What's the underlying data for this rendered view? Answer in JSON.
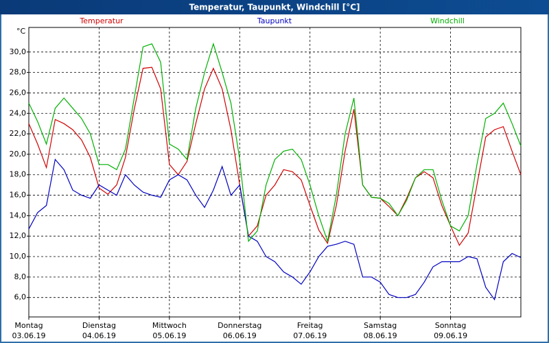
{
  "chart_data": {
    "type": "line",
    "title": "Temperatur, Taupunkt, Windchill [°C]",
    "y_unit": "°C",
    "x": [
      0,
      3,
      6,
      9,
      12,
      15,
      18,
      21,
      24,
      27,
      30,
      33,
      36,
      39,
      42,
      45,
      48,
      51,
      54,
      57,
      60,
      63,
      66,
      69,
      72,
      75,
      78,
      81,
      84,
      87,
      90,
      93,
      96,
      99,
      102,
      105,
      108,
      111,
      114,
      117,
      120,
      123,
      126,
      129,
      132,
      135,
      138,
      141,
      144,
      147,
      150,
      153,
      156,
      159,
      162,
      165,
      168
    ],
    "xlim": [
      0,
      168
    ],
    "xticks": [
      {
        "value": 0,
        "label": [
          "Montag",
          "03.06.19"
        ]
      },
      {
        "value": 24,
        "label": [
          "Dienstag",
          "04.06.19"
        ]
      },
      {
        "value": 48,
        "label": [
          "Mittwoch",
          "05.06.19"
        ]
      },
      {
        "value": 72,
        "label": [
          "Donnerstag",
          "06.06.19"
        ]
      },
      {
        "value": 96,
        "label": [
          "Freitag",
          "07.06.19"
        ]
      },
      {
        "value": 120,
        "label": [
          "Samstag",
          "08.06.19"
        ]
      },
      {
        "value": 144,
        "label": [
          "Sonntag",
          "09.06.19"
        ]
      }
    ],
    "ylim": [
      4.1,
      32.4
    ],
    "yticks": [
      {
        "value": 6,
        "label": "6,0"
      },
      {
        "value": 8,
        "label": "8,0"
      },
      {
        "value": 10,
        "label": "10,0"
      },
      {
        "value": 12,
        "label": "12,0"
      },
      {
        "value": 14,
        "label": "14,0"
      },
      {
        "value": 16,
        "label": "16,0"
      },
      {
        "value": 18,
        "label": "18,0"
      },
      {
        "value": 20,
        "label": "20,0"
      },
      {
        "value": 22,
        "label": "22,0"
      },
      {
        "value": 24,
        "label": "24,0"
      },
      {
        "value": 26,
        "label": "26,0"
      },
      {
        "value": 28,
        "label": "28,0"
      },
      {
        "value": 30,
        "label": "30,0"
      }
    ],
    "grid": true,
    "series": [
      {
        "name": "Temperatur",
        "color": "#d00000",
        "values": [
          23.0,
          21.0,
          18.7,
          23.4,
          23.0,
          22.4,
          21.4,
          19.7,
          16.7,
          16.1,
          17.0,
          19.7,
          24.4,
          28.4,
          28.5,
          26.4,
          19.0,
          18.0,
          19.3,
          23.0,
          26.4,
          28.4,
          26.4,
          22.4,
          17.0,
          12.0,
          13.0,
          16.0,
          17.0,
          18.5,
          18.3,
          17.5,
          15.0,
          12.6,
          11.3,
          15.0,
          20.3,
          24.4,
          17.0,
          15.8,
          15.7,
          14.9,
          14.0,
          15.7,
          17.7,
          18.3,
          17.7,
          15.0,
          13.0,
          11.1,
          12.3,
          17.0,
          21.7,
          22.4,
          22.7,
          20.3,
          18.0
        ]
      },
      {
        "name": "Taupunkt",
        "color": "#0000c0",
        "values": [
          12.7,
          14.3,
          15.0,
          19.5,
          18.5,
          16.5,
          16.0,
          15.7,
          17.0,
          16.5,
          16.0,
          18.0,
          17.0,
          16.3,
          16.0,
          15.8,
          17.5,
          18.0,
          17.5,
          16.0,
          14.8,
          16.5,
          18.8,
          16.0,
          17.0,
          12.0,
          11.5,
          10.0,
          9.5,
          8.5,
          8.0,
          7.3,
          8.5,
          10.0,
          11.0,
          11.2,
          11.5,
          11.2,
          8.0,
          8.0,
          7.5,
          6.3,
          6.0,
          6.0,
          6.3,
          7.5,
          9.0,
          9.5,
          9.5,
          9.5,
          10.0,
          9.8,
          7.0,
          5.8,
          9.5,
          10.3,
          9.9
        ]
      },
      {
        "name": "Windchill",
        "color": "#00b000",
        "values": [
          25.0,
          23.2,
          21.0,
          24.5,
          25.5,
          24.5,
          23.5,
          22.0,
          19.0,
          19.0,
          18.5,
          20.5,
          25.5,
          30.5,
          30.8,
          29.0,
          21.0,
          20.5,
          19.5,
          24.5,
          28.0,
          30.8,
          28.0,
          25.0,
          19.5,
          11.5,
          12.5,
          17.0,
          19.5,
          20.3,
          20.5,
          19.5,
          17.0,
          14.0,
          11.5,
          16.0,
          22.0,
          25.5,
          17.0,
          15.8,
          15.7,
          15.2,
          14.0,
          15.5,
          17.7,
          18.5,
          18.5,
          15.5,
          13.0,
          12.5,
          14.0,
          19.0,
          23.5,
          24.0,
          25.0,
          23.0,
          20.8
        ]
      }
    ]
  }
}
